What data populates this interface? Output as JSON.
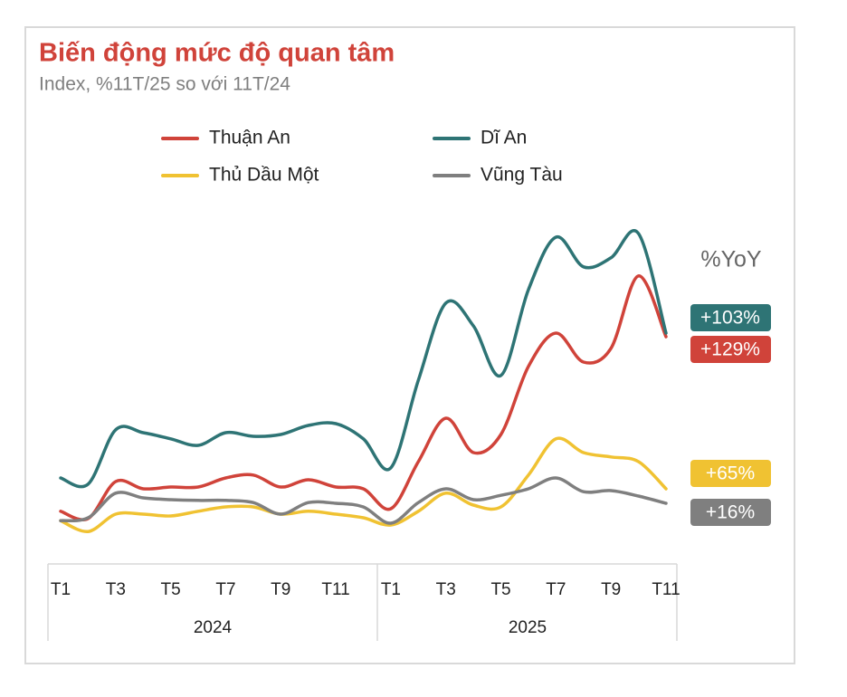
{
  "chart_data": {
    "type": "line",
    "title": "Biến động mức độ quan tâm",
    "subtitle": "Index, %11T/25 so với 11T/24",
    "categories": [
      "T1",
      null,
      "T3",
      null,
      "T5",
      null,
      "T7",
      null,
      "T9",
      null,
      "T11",
      null,
      "T1",
      null,
      "T3",
      null,
      "T5",
      null,
      "T7",
      null,
      "T9",
      null,
      "T11"
    ],
    "x_groups": [
      "2024",
      "2025"
    ],
    "ylim": [
      0,
      100
    ],
    "yoy_title": "%YoY",
    "series": [
      {
        "name": "Thuận An",
        "color": "#d0433a",
        "values": [
          13.8,
          11.8,
          22,
          20,
          20.5,
          20.5,
          23,
          23.8,
          20.5,
          22.5,
          20.5,
          20,
          14.5,
          27.5,
          39.5,
          30,
          35,
          53.8,
          63,
          55,
          58.8,
          78.8,
          62
        ],
        "yoy": 129,
        "yoy_label": "+129%"
      },
      {
        "name": "Dĩ An",
        "color": "#2e7475",
        "values": [
          23,
          21.3,
          36.3,
          35.5,
          33.8,
          32,
          35.5,
          34.5,
          35,
          37.5,
          38,
          33.8,
          25.8,
          50,
          71.3,
          65,
          51.3,
          75,
          89.5,
          81.3,
          83.8,
          90.5,
          63
        ],
        "yoy": 103,
        "yoy_label": "+103%"
      },
      {
        "name": "Thủ Dầu Một",
        "color": "#f0c232",
        "values": [
          11.2,
          8.2,
          13,
          13,
          12.5,
          13.8,
          15,
          15,
          13,
          13.8,
          13,
          12,
          10,
          13.8,
          18.8,
          15.5,
          15,
          23.8,
          33.8,
          30,
          28.8,
          27.5,
          20
        ],
        "yoy": 65,
        "yoy_label": "+65%"
      },
      {
        "name": "Vũng Tàu",
        "color": "#7f7f7f",
        "values": [
          11.2,
          12,
          18.8,
          17.5,
          17,
          16.8,
          16.8,
          16.2,
          13,
          16.2,
          16,
          15,
          10.5,
          16.2,
          20,
          17,
          18.2,
          20,
          23,
          19.2,
          19.5,
          18,
          16
        ],
        "yoy": 16,
        "yoy_label": "+16%"
      }
    ]
  }
}
